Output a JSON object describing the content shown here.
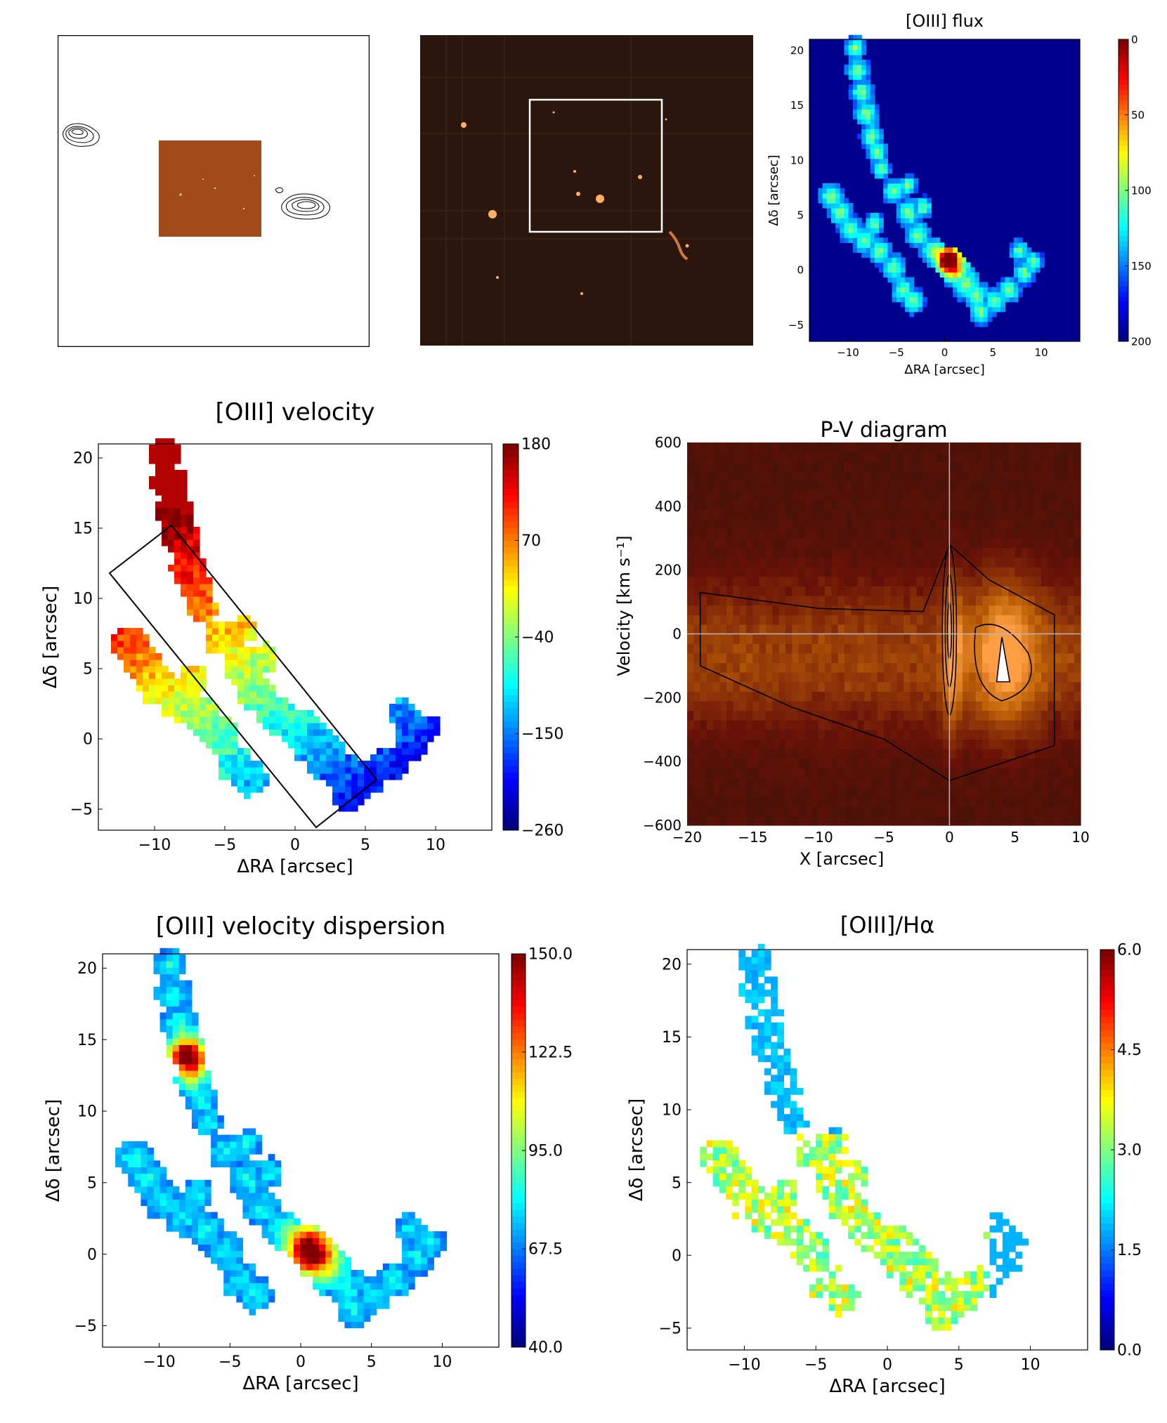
{
  "panels": {
    "radio": {
      "type": "image",
      "description_colors": {
        "frame": "#000000",
        "inset": "#a14a1a"
      }
    },
    "optical": {
      "type": "image",
      "colors": {
        "bg": "#2b160d",
        "box": "#ffffff"
      }
    }
  },
  "chart_data": [
    {
      "id": "flux",
      "type": "heatmap",
      "title": "[OIII] flux",
      "xlabel": "ΔRA [arcsec]",
      "ylabel": "Δδ [arcsec]",
      "xlim": [
        -14,
        14
      ],
      "ylim": [
        -6.5,
        21
      ],
      "xticks": [
        -10,
        -5,
        0,
        5,
        10
      ],
      "yticks": [
        -5,
        0,
        5,
        10,
        15,
        20
      ],
      "colorbar": {
        "min": 0,
        "max": 200,
        "ticks": [
          "0",
          "50",
          "100",
          "150",
          "200"
        ],
        "cmap": "jet"
      }
    },
    {
      "id": "velocity",
      "type": "heatmap",
      "title": "[OIII] velocity",
      "xlabel": "ΔRA [arcsec]",
      "ylabel": "Δδ [arcsec]",
      "xlim": [
        -14,
        14
      ],
      "ylim": [
        -6.5,
        21
      ],
      "xticks": [
        -10,
        -5,
        0,
        5,
        10
      ],
      "yticks": [
        -5,
        0,
        5,
        10,
        15,
        20
      ],
      "colorbar": {
        "min": -260,
        "max": 180,
        "ticks": [
          "180",
          "70",
          "−40",
          "−150",
          "−260"
        ],
        "cmap": "jet"
      }
    },
    {
      "id": "pv",
      "type": "heatmap",
      "title": "P-V diagram",
      "xlabel": "X [arcsec]",
      "ylabel": "Velocity [km s⁻¹]",
      "xlim": [
        -20,
        10
      ],
      "ylim": [
        -600,
        600
      ],
      "xticks": [
        "−20",
        "−15",
        "−10",
        "−5",
        "0",
        "5",
        "10"
      ],
      "yticks": [
        "600",
        "400",
        "200",
        "0",
        "−200",
        "−400",
        "−600"
      ]
    },
    {
      "id": "dispersion",
      "type": "heatmap",
      "title": "[OIII] velocity dispersion",
      "xlabel": "ΔRA [arcsec]",
      "ylabel": "Δδ [arcsec]",
      "xlim": [
        -14,
        14
      ],
      "ylim": [
        -6.5,
        21
      ],
      "xticks": [
        -10,
        -5,
        0,
        5,
        10
      ],
      "yticks": [
        -5,
        0,
        5,
        10,
        15,
        20
      ],
      "colorbar": {
        "min": 40,
        "max": 150,
        "ticks": [
          "150.0",
          "122.5",
          "95.0",
          "67.5",
          "40.0"
        ],
        "cmap": "jet"
      }
    },
    {
      "id": "ratio",
      "type": "heatmap",
      "title": "[OIII]/Hα",
      "xlabel": "ΔRA [arcsec]",
      "ylabel": "Δδ [arcsec]",
      "xlim": [
        -14,
        14
      ],
      "ylim": [
        -6.5,
        21
      ],
      "xticks": [
        -10,
        -5,
        0,
        5,
        10
      ],
      "yticks": [
        -5,
        0,
        5,
        10,
        15,
        20
      ],
      "colorbar": {
        "min": 0,
        "max": 6,
        "ticks": [
          "6.0",
          "4.5",
          "3.0",
          "1.5",
          "0.0"
        ],
        "cmap": "jet"
      }
    }
  ]
}
